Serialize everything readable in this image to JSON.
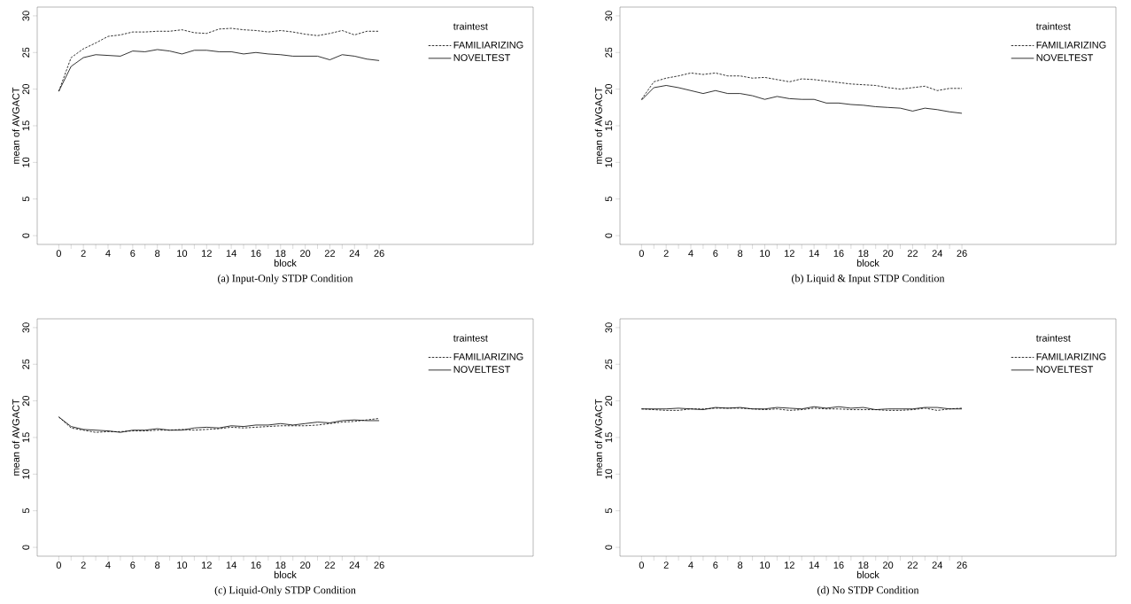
{
  "chart_data": [
    {
      "type": "line",
      "title": "(a) Input-Only STDP Condition",
      "xlabel": "block",
      "ylabel": "mean of AVGACT",
      "legend_title": "traintest",
      "legend": "top right",
      "categories": [
        "0",
        null,
        "2",
        null,
        "4",
        null,
        "6",
        null,
        "8",
        null,
        "10",
        null,
        "12",
        null,
        "14",
        null,
        "16",
        null,
        "18",
        null,
        "20",
        null,
        "22",
        null,
        "24",
        null,
        "26"
      ],
      "ylim": [
        -1.2,
        31.2
      ],
      "yticks": [
        0,
        5,
        10,
        15,
        20,
        25,
        30
      ],
      "series": [
        {
          "name": "FAMILIARIZING",
          "color": "#000000",
          "line_style": "dashed",
          "values": [
            19.7,
            24.3,
            25.5,
            26.3,
            27.2,
            27.4,
            27.8,
            27.8,
            27.9,
            27.9,
            28.1,
            27.7,
            27.6,
            28.2,
            28.3,
            28.1,
            28.0,
            27.8,
            28.0,
            27.8,
            27.5,
            27.3,
            27.6,
            28.0,
            27.4,
            27.9,
            27.9
          ]
        },
        {
          "name": "NOVELTEST",
          "color": "#000000",
          "line_style": "solid",
          "values": [
            19.7,
            23.1,
            24.3,
            24.7,
            24.6,
            24.5,
            25.2,
            25.1,
            25.4,
            25.2,
            24.8,
            25.3,
            25.3,
            25.1,
            25.1,
            24.8,
            25.0,
            24.8,
            24.7,
            24.5,
            24.5,
            24.5,
            24.0,
            24.7,
            24.5,
            24.1,
            23.9
          ]
        }
      ]
    },
    {
      "type": "line",
      "title": "(b) Liquid & Input STDP Condition",
      "xlabel": "block",
      "ylabel": "mean of AVGACT",
      "legend_title": "traintest",
      "legend": "top right",
      "categories": [
        "0",
        null,
        "2",
        null,
        "4",
        null,
        "6",
        null,
        "8",
        null,
        "10",
        null,
        "12",
        null,
        "14",
        null,
        "16",
        null,
        "18",
        null,
        "20",
        null,
        "22",
        null,
        "24",
        null,
        "26"
      ],
      "ylim": [
        -1.2,
        31.2
      ],
      "yticks": [
        0,
        5,
        10,
        15,
        20,
        25,
        30
      ],
      "series": [
        {
          "name": "FAMILIARIZING",
          "color": "#000000",
          "line_style": "dashed",
          "values": [
            18.6,
            21.0,
            21.5,
            21.8,
            22.2,
            22.0,
            22.2,
            21.8,
            21.8,
            21.5,
            21.6,
            21.3,
            21.0,
            21.4,
            21.3,
            21.1,
            20.9,
            20.7,
            20.6,
            20.5,
            20.2,
            20.0,
            20.2,
            20.4,
            19.8,
            20.1,
            20.1
          ]
        },
        {
          "name": "NOVELTEST",
          "color": "#000000",
          "line_style": "solid",
          "values": [
            18.5,
            20.2,
            20.5,
            20.2,
            19.8,
            19.4,
            19.8,
            19.4,
            19.4,
            19.1,
            18.6,
            19.0,
            18.7,
            18.6,
            18.6,
            18.1,
            18.1,
            17.9,
            17.8,
            17.6,
            17.5,
            17.4,
            17.0,
            17.4,
            17.2,
            16.9,
            16.7
          ]
        }
      ]
    },
    {
      "type": "line",
      "title": "(c) Liquid-Only STDP Condition",
      "xlabel": "block",
      "ylabel": "mean of AVGACT",
      "legend_title": "traintest",
      "legend": "top right",
      "categories": [
        "0",
        null,
        "2",
        null,
        "4",
        null,
        "6",
        null,
        "8",
        null,
        "10",
        null,
        "12",
        null,
        "14",
        null,
        "16",
        null,
        "18",
        null,
        "20",
        null,
        "22",
        null,
        "24",
        null,
        "26"
      ],
      "ylim": [
        -1.2,
        31.2
      ],
      "yticks": [
        0,
        5,
        10,
        15,
        20,
        25,
        30
      ],
      "series": [
        {
          "name": "FAMILIARIZING",
          "color": "#000000",
          "line_style": "dashed",
          "values": [
            17.8,
            16.3,
            16.0,
            15.7,
            15.8,
            15.8,
            15.9,
            15.9,
            16.0,
            16.0,
            16.1,
            16.0,
            16.1,
            16.2,
            16.4,
            16.3,
            16.4,
            16.5,
            16.6,
            16.6,
            16.6,
            16.7,
            16.9,
            17.1,
            17.2,
            17.4,
            17.6
          ]
        },
        {
          "name": "NOVELTEST",
          "color": "#000000",
          "line_style": "solid",
          "values": [
            17.8,
            16.5,
            16.1,
            16.0,
            15.9,
            15.7,
            16.0,
            16.0,
            16.2,
            16.0,
            16.0,
            16.3,
            16.4,
            16.3,
            16.6,
            16.5,
            16.7,
            16.7,
            16.9,
            16.7,
            16.9,
            17.1,
            17.0,
            17.3,
            17.4,
            17.3,
            17.3
          ]
        }
      ]
    },
    {
      "type": "line",
      "title": "(d) No STDP Condition",
      "xlabel": "block",
      "ylabel": "mean of AVGACT",
      "legend_title": "traintest",
      "legend": "top right",
      "categories": [
        "0",
        null,
        "2",
        null,
        "4",
        null,
        "6",
        null,
        "8",
        null,
        "10",
        null,
        "12",
        null,
        "14",
        null,
        "16",
        null,
        "18",
        null,
        "20",
        null,
        "22",
        null,
        "24",
        null,
        "26"
      ],
      "ylim": [
        -1.2,
        31.2
      ],
      "yticks": [
        0,
        5,
        10,
        15,
        20,
        25,
        30
      ],
      "series": [
        {
          "name": "FAMILIARIZING",
          "color": "#000000",
          "line_style": "dashed",
          "values": [
            18.9,
            18.8,
            18.7,
            18.7,
            18.9,
            18.9,
            19.0,
            19.0,
            19.0,
            18.9,
            18.8,
            18.9,
            18.7,
            18.8,
            19.0,
            18.9,
            18.9,
            18.8,
            18.8,
            18.8,
            18.7,
            18.7,
            18.8,
            19.0,
            18.7,
            18.9,
            19.0
          ]
        },
        {
          "name": "NOVELTEST",
          "color": "#000000",
          "line_style": "solid",
          "values": [
            18.9,
            18.9,
            18.9,
            19.0,
            18.9,
            18.8,
            19.1,
            19.0,
            19.1,
            18.9,
            18.9,
            19.1,
            19.0,
            18.9,
            19.2,
            19.0,
            19.2,
            19.0,
            19.1,
            18.8,
            18.9,
            18.9,
            18.9,
            19.1,
            19.1,
            18.9,
            18.9
          ]
        }
      ]
    }
  ]
}
